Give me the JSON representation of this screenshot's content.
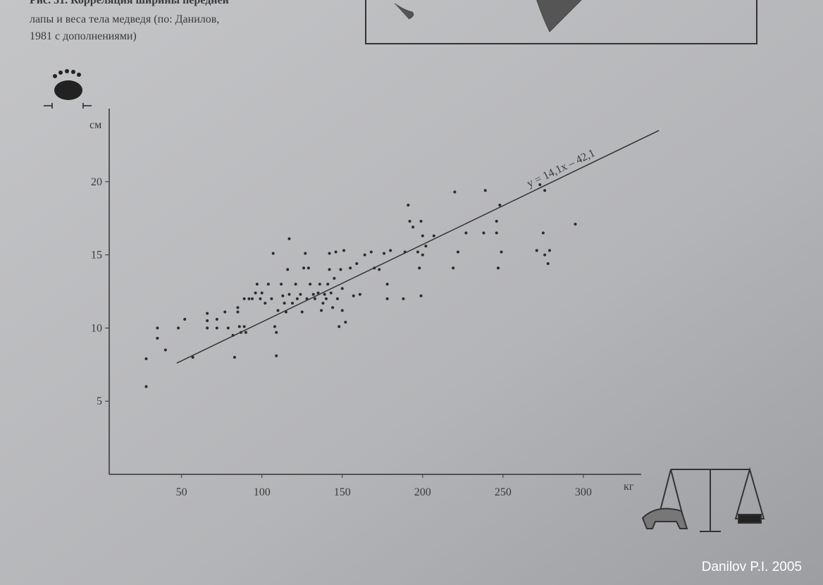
{
  "caption": [
    "Рис. 31. Корреляция ширины передней",
    "лапы и веса тела медведя (по: Данилов,",
    "1981 с дополнениями)"
  ],
  "credit": "Danilov P.I. 2005",
  "chart_data": {
    "type": "scatter",
    "x_label": "кг",
    "y_label": "см",
    "xlim": [
      5,
      336
    ],
    "ylim": [
      0,
      25
    ],
    "xticks": [
      50,
      100,
      150,
      200,
      250,
      300
    ],
    "yticks": [
      5,
      10,
      15,
      20
    ],
    "color": "#2b2b2b",
    "x": [
      28,
      28,
      35,
      35,
      40,
      48,
      52,
      57,
      66,
      66,
      66,
      72,
      72,
      77,
      79,
      82,
      83,
      85,
      85,
      86,
      87,
      89,
      90,
      89,
      92,
      94,
      96,
      97,
      99,
      100,
      102,
      104,
      106,
      107,
      108,
      109,
      109,
      110,
      112,
      113,
      114,
      115,
      116,
      117,
      117,
      119,
      121,
      122,
      124,
      125,
      126,
      127,
      128,
      129,
      130,
      132,
      133,
      135,
      136,
      137,
      138,
      139,
      140,
      141,
      142,
      142,
      143,
      144,
      145,
      146,
      147,
      148,
      149,
      150,
      150,
      151,
      152,
      155,
      157,
      159,
      161,
      164,
      168,
      170,
      173,
      176,
      178,
      178,
      180,
      188,
      189,
      191,
      192,
      194,
      197,
      198,
      199,
      199,
      200,
      200,
      202,
      207,
      219,
      220,
      222,
      227,
      238,
      239,
      246,
      246,
      247,
      248,
      249,
      271,
      273,
      275,
      276,
      276,
      278,
      279,
      295
    ],
    "y": [
      7.9,
      6.0,
      10.0,
      9.3,
      8.5,
      10.0,
      10.6,
      8.0,
      11.0,
      10.5,
      10.0,
      10.6,
      10.0,
      11.1,
      10.0,
      9.5,
      8.0,
      11.4,
      11.1,
      10.1,
      9.7,
      10.1,
      9.7,
      12.0,
      12.0,
      12.0,
      12.4,
      13.0,
      12.0,
      12.4,
      11.7,
      13.0,
      12.0,
      15.1,
      10.1,
      9.7,
      8.1,
      11.2,
      13.0,
      12.2,
      11.7,
      11.1,
      14.0,
      16.1,
      12.3,
      11.7,
      13.0,
      12.0,
      12.3,
      11.1,
      14.1,
      15.1,
      12.0,
      14.1,
      13.0,
      12.3,
      12.0,
      12.4,
      13.0,
      11.2,
      11.7,
      12.3,
      12.0,
      13.0,
      14.0,
      15.1,
      12.4,
      11.4,
      13.4,
      15.2,
      12.0,
      10.1,
      14.0,
      11.2,
      12.7,
      15.3,
      10.4,
      14.1,
      12.2,
      14.4,
      12.3,
      15.0,
      15.2,
      14.1,
      14.0,
      15.1,
      13.0,
      12.0,
      15.3,
      12.0,
      15.2,
      18.4,
      17.3,
      16.9,
      15.2,
      14.1,
      12.2,
      17.3,
      16.3,
      15.0,
      15.6,
      16.3,
      14.1,
      19.3,
      15.2,
      16.5,
      16.5,
      19.4,
      17.3,
      16.5,
      14.1,
      18.4,
      15.2,
      15.3,
      19.8,
      16.5,
      19.4,
      15.0,
      14.4,
      15.3,
      17.1
    ],
    "trend_line": {
      "x": [
        47,
        347
      ],
      "y": [
        7.6,
        23.5
      ],
      "label": "y = 14,1x – 42,1"
    }
  }
}
